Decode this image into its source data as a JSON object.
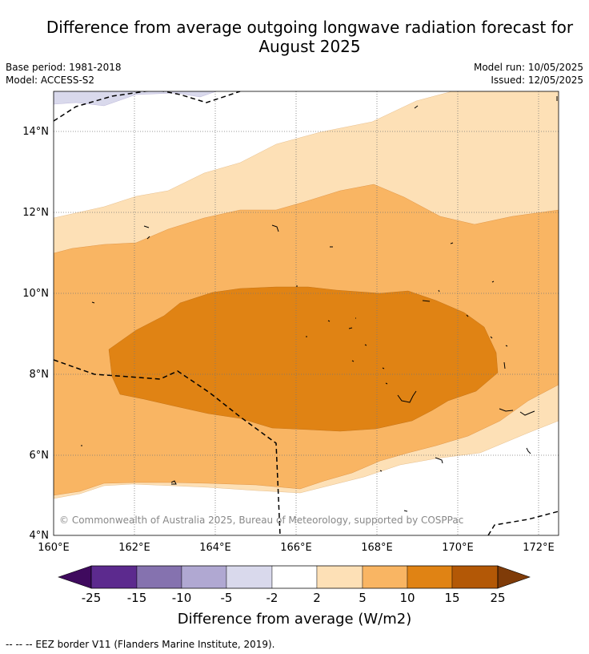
{
  "header": {
    "title_line1": "Difference from average outgoing longwave radiation forecast for",
    "title_line2": "August 2025",
    "base_period": "Base period: 1981-2018",
    "model": "Model: ACCESS-S2",
    "model_run": "Model run: 10/05/2025",
    "issued": "Issued: 12/05/2025"
  },
  "map": {
    "lat_labels": [
      "14°N",
      "12°N",
      "10°N",
      "8°N",
      "6°N",
      "4°N"
    ],
    "lon_labels": [
      "160°E",
      "162°E",
      "164°E",
      "166°E",
      "168°E",
      "170°E",
      "172°E"
    ],
    "copyright": "© Commonwealth of Australia 2025, Bureau of Meteorology, supported by COSPPac"
  },
  "colorbar": {
    "ticks": [
      "-25",
      "-15",
      "-10",
      "-5",
      "-2",
      "2",
      "5",
      "10",
      "15",
      "25"
    ],
    "label": "Difference from average (W/m2)",
    "colors": [
      "#3f0a5e",
      "#5c2a8e",
      "#8572af",
      "#b0a8d2",
      "#d9d9ec",
      "#ffffff",
      "#fde0b6",
      "#f9b563",
      "#e08314",
      "#b35806",
      "#7f3b08"
    ]
  },
  "footer": {
    "legend_text": "--  --  -- EEZ border V11 (Flanders Marine Institute, 2019)."
  }
}
